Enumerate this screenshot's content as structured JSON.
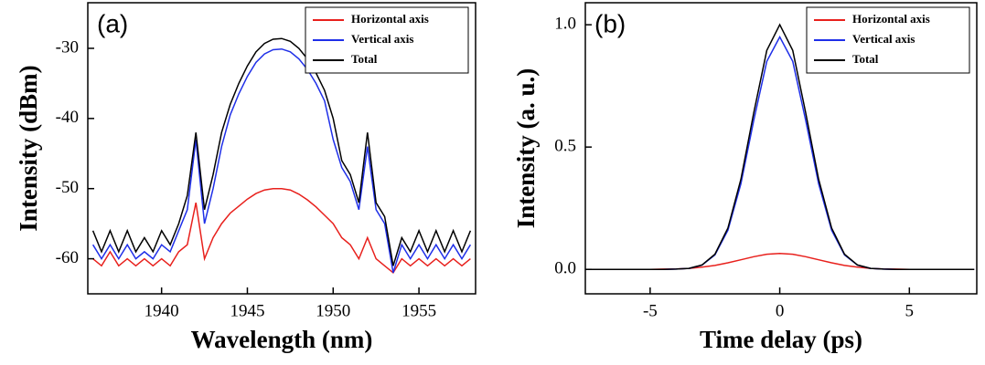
{
  "chart_data": [
    {
      "type": "line",
      "panel_label": "(a)",
      "x_label": "Wavelength (nm)",
      "y_label": "Intensity (dBm)",
      "x": [
        1936,
        1936.5,
        1937,
        1937.5,
        1938,
        1938.5,
        1939,
        1939.5,
        1940,
        1940.5,
        1941,
        1941.5,
        1942,
        1942.5,
        1943,
        1943.5,
        1944,
        1944.5,
        1945,
        1945.5,
        1946,
        1946.5,
        1947,
        1947.5,
        1948,
        1948.5,
        1949,
        1949.5,
        1950,
        1950.5,
        1951,
        1951.5,
        1952,
        1952.5,
        1953,
        1953.5,
        1954,
        1954.5,
        1955,
        1955.5,
        1956,
        1956.5,
        1957,
        1957.5,
        1958
      ],
      "series": [
        {
          "name": "Horizontal axis",
          "color": "#e8201c",
          "values": [
            -60,
            -61,
            -59,
            -61,
            -60,
            -61,
            -60,
            -61,
            -60,
            -61,
            -59,
            -58,
            -52,
            -60,
            -57,
            -55,
            -53.5,
            -52.5,
            -51.5,
            -50.7,
            -50.2,
            -50,
            -50,
            -50.2,
            -50.8,
            -51.6,
            -52.6,
            -53.8,
            -55,
            -57,
            -58,
            -60,
            -57,
            -60,
            -61,
            -62,
            -60,
            -61,
            -60,
            -61,
            -60,
            -61,
            -60,
            -61,
            -60
          ]
        },
        {
          "name": "Vertical axis",
          "color": "#1f2fe8",
          "values": [
            -58,
            -60,
            -58,
            -60,
            -58,
            -60,
            -59,
            -60,
            -58,
            -59,
            -56,
            -53,
            -43,
            -55,
            -50,
            -44,
            -39.5,
            -36.5,
            -34,
            -32,
            -30.8,
            -30.2,
            -30.1,
            -30.5,
            -31.5,
            -33,
            -35,
            -37.5,
            -43,
            -47,
            -49,
            -53,
            -44,
            -53,
            -55,
            -62,
            -58,
            -60,
            -58,
            -60,
            -58,
            -60,
            -58,
            -60,
            -58
          ]
        },
        {
          "name": "Total",
          "color": "#000000",
          "values": [
            -56,
            -59,
            -56,
            -59,
            -56,
            -59,
            -57,
            -59,
            -56,
            -58,
            -55,
            -51,
            -42,
            -53,
            -48,
            -42,
            -38,
            -35,
            -32.5,
            -30.5,
            -29.3,
            -28.7,
            -28.6,
            -29,
            -30,
            -31.5,
            -33.5,
            -36,
            -40,
            -46,
            -48,
            -52,
            -42,
            -52,
            -54,
            -61,
            -57,
            -59,
            -56,
            -59,
            -56,
            -59,
            -56,
            -59,
            -56
          ]
        }
      ],
      "xlim": [
        1935.7,
        1958.3
      ],
      "xticks": [
        1940,
        1945,
        1950,
        1955
      ],
      "ylim": [
        -65,
        -23.5
      ],
      "yticks": [
        -60,
        -50,
        -40,
        -30
      ],
      "legend": "upper right"
    },
    {
      "type": "line",
      "panel_label": "(b)",
      "x_label": "Time delay (ps)",
      "y_label": "Intensity (a. u.)",
      "x": [
        -7.5,
        -7,
        -6.5,
        -6,
        -5.5,
        -5,
        -4.5,
        -4,
        -3.5,
        -3,
        -2.5,
        -2,
        -1.5,
        -1,
        -0.5,
        0,
        0.5,
        1,
        1.5,
        2,
        2.5,
        3,
        3.5,
        4,
        4.5,
        5,
        5.5,
        6,
        6.5,
        7,
        7.5
      ],
      "series": [
        {
          "name": "Horizontal axis",
          "color": "#e8201c",
          "values": [
            0,
            0,
            0,
            0,
            0,
            0,
            0.001,
            0.002,
            0.004,
            0.009,
            0.016,
            0.027,
            0.039,
            0.052,
            0.062,
            0.065,
            0.062,
            0.052,
            0.039,
            0.027,
            0.016,
            0.009,
            0.004,
            0.002,
            0.001,
            0,
            0,
            0,
            0,
            0,
            0
          ]
        },
        {
          "name": "Vertical axis",
          "color": "#1f2fe8",
          "values": [
            0,
            0,
            0,
            0,
            0,
            0,
            0,
            0.001,
            0.004,
            0.017,
            0.059,
            0.16,
            0.35,
            0.61,
            0.85,
            0.95,
            0.85,
            0.61,
            0.35,
            0.16,
            0.059,
            0.017,
            0.004,
            0.001,
            0,
            0,
            0,
            0,
            0,
            0,
            0
          ]
        },
        {
          "name": "Total",
          "color": "#000000",
          "values": [
            0,
            0,
            0,
            0,
            0,
            0,
            0,
            0.001,
            0.004,
            0.018,
            0.062,
            0.169,
            0.368,
            0.641,
            0.895,
            1.0,
            0.895,
            0.641,
            0.368,
            0.169,
            0.062,
            0.018,
            0.004,
            0.001,
            0,
            0,
            0,
            0,
            0,
            0,
            0
          ]
        }
      ],
      "xlim": [
        -7.5,
        7.6
      ],
      "xticks": [
        -5,
        0,
        5
      ],
      "ylim": [
        -0.1,
        1.09
      ],
      "yticks": [
        {
          "value": 0,
          "label": "0.0"
        },
        0.5,
        {
          "value": 1,
          "label": "1.0"
        }
      ],
      "legend": "upper right"
    }
  ]
}
